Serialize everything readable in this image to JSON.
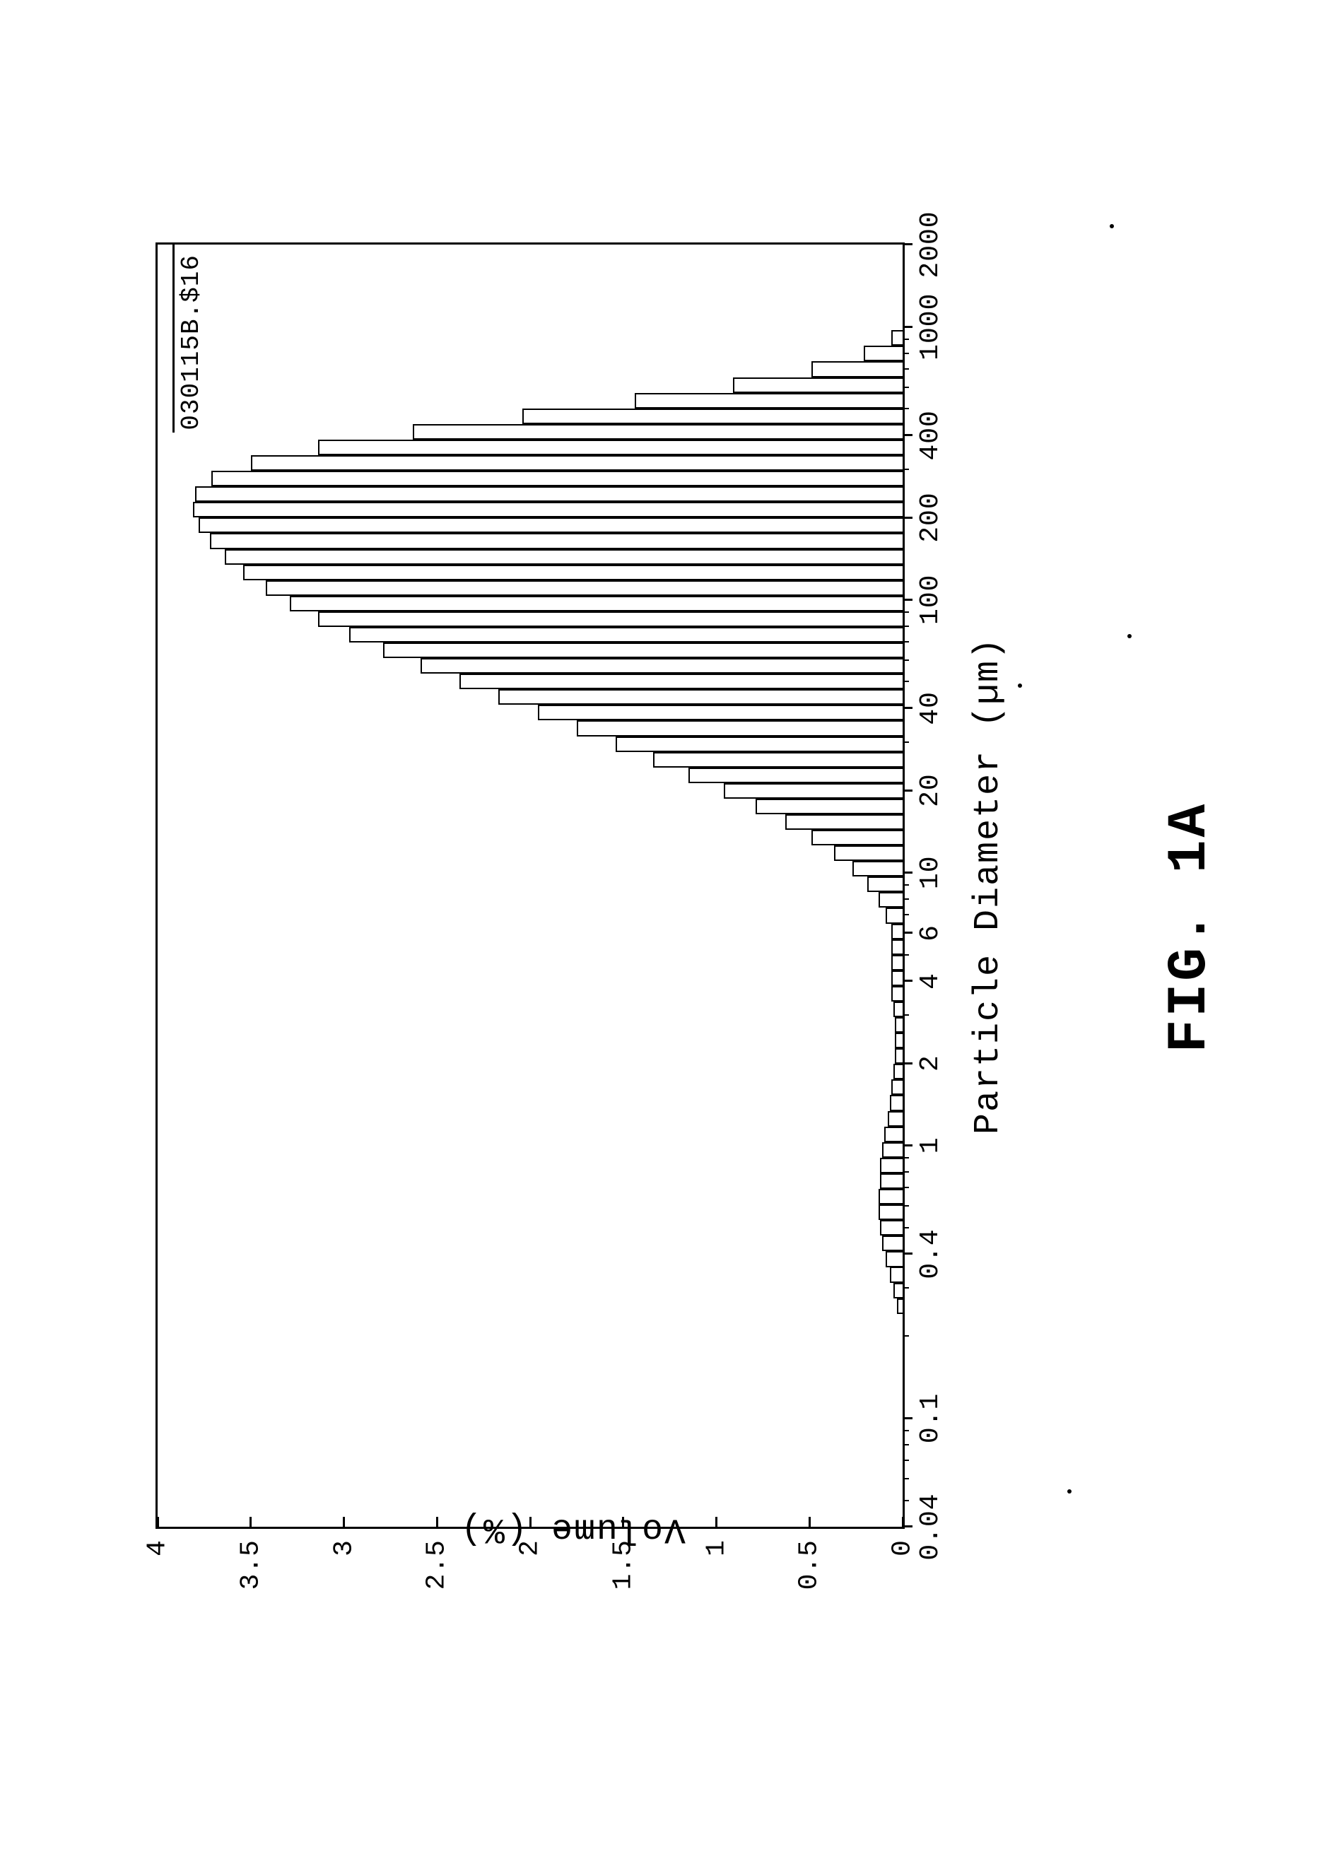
{
  "figure_label": "FIG. 1A",
  "chart": {
    "type": "histogram",
    "x_label": "Particle Diameter (µm)",
    "y_label": "Volume (%)",
    "legend_label": "030115B.$16",
    "background_color": "#ffffff",
    "border_color": "#000000",
    "bar_fill": "#ffffff",
    "bar_stroke": "#000000",
    "axis_font_family": "Courier New",
    "tick_fontsize_pt": 28,
    "label_fontsize_pt": 38,
    "figlabel_fontsize_pt": 58,
    "x_scale": "log",
    "y_scale": "linear",
    "xlim": [
      0.04,
      2000
    ],
    "ylim": [
      0,
      4
    ],
    "y_ticks": [
      0,
      0.5,
      1,
      1.5,
      2,
      2.5,
      3,
      3.5,
      4
    ],
    "y_tick_labels": [
      "0",
      "0.5",
      "1",
      "1.5",
      "2",
      "2.5",
      "3",
      "3.5",
      "4"
    ],
    "x_ticks": [
      0.04,
      0.1,
      0.4,
      1,
      2,
      4,
      6,
      10,
      20,
      40,
      100,
      200,
      400,
      1000,
      2000
    ],
    "x_tick_labels": [
      "0.04",
      "0.1",
      "0.4",
      "1",
      "2",
      "4",
      "6",
      "10",
      "20",
      "40",
      "100",
      "200",
      "400",
      "1000",
      "2000"
    ],
    "bins": [
      {
        "x": 0.241,
        "h": 0.03
      },
      {
        "x": 0.275,
        "h": 0.05
      },
      {
        "x": 0.314,
        "h": 0.07
      },
      {
        "x": 0.358,
        "h": 0.09
      },
      {
        "x": 0.409,
        "h": 0.11
      },
      {
        "x": 0.466,
        "h": 0.12
      },
      {
        "x": 0.532,
        "h": 0.13
      },
      {
        "x": 0.607,
        "h": 0.13
      },
      {
        "x": 0.692,
        "h": 0.12
      },
      {
        "x": 0.79,
        "h": 0.12
      },
      {
        "x": 0.901,
        "h": 0.11
      },
      {
        "x": 1.028,
        "h": 0.1
      },
      {
        "x": 1.172,
        "h": 0.08
      },
      {
        "x": 1.338,
        "h": 0.07
      },
      {
        "x": 1.526,
        "h": 0.06
      },
      {
        "x": 1.741,
        "h": 0.05
      },
      {
        "x": 1.986,
        "h": 0.04
      },
      {
        "x": 2.265,
        "h": 0.04
      },
      {
        "x": 2.584,
        "h": 0.04
      },
      {
        "x": 2.948,
        "h": 0.05
      },
      {
        "x": 3.363,
        "h": 0.06
      },
      {
        "x": 3.837,
        "h": 0.06
      },
      {
        "x": 4.377,
        "h": 0.06
      },
      {
        "x": 4.993,
        "h": 0.06
      },
      {
        "x": 5.696,
        "h": 0.06
      },
      {
        "x": 6.498,
        "h": 0.09
      },
      {
        "x": 7.413,
        "h": 0.13
      },
      {
        "x": 8.457,
        "h": 0.19
      },
      {
        "x": 9.647,
        "h": 0.27
      },
      {
        "x": 11.006,
        "h": 0.37
      },
      {
        "x": 12.555,
        "h": 0.49
      },
      {
        "x": 14.323,
        "h": 0.63
      },
      {
        "x": 16.34,
        "h": 0.79
      },
      {
        "x": 18.64,
        "h": 0.96
      },
      {
        "x": 21.265,
        "h": 1.15
      },
      {
        "x": 24.259,
        "h": 1.34
      },
      {
        "x": 27.675,
        "h": 1.54
      },
      {
        "x": 31.571,
        "h": 1.75
      },
      {
        "x": 36.017,
        "h": 1.96
      },
      {
        "x": 41.088,
        "h": 2.17
      },
      {
        "x": 46.873,
        "h": 2.38
      },
      {
        "x": 53.473,
        "h": 2.59
      },
      {
        "x": 61.003,
        "h": 2.79
      },
      {
        "x": 69.592,
        "h": 2.97
      },
      {
        "x": 79.391,
        "h": 3.14
      },
      {
        "x": 90.569,
        "h": 3.29
      },
      {
        "x": 103.322,
        "h": 3.42
      },
      {
        "x": 117.87,
        "h": 3.54
      },
      {
        "x": 134.467,
        "h": 3.64
      },
      {
        "x": 153.401,
        "h": 3.72
      },
      {
        "x": 175.002,
        "h": 3.78
      },
      {
        "x": 199.644,
        "h": 3.81
      },
      {
        "x": 227.756,
        "h": 3.8
      },
      {
        "x": 259.826,
        "h": 3.71
      },
      {
        "x": 296.411,
        "h": 3.5
      },
      {
        "x": 338.147,
        "h": 3.14
      },
      {
        "x": 385.759,
        "h": 2.63
      },
      {
        "x": 440.076,
        "h": 2.04
      },
      {
        "x": 502.041,
        "h": 1.44
      },
      {
        "x": 572.731,
        "h": 0.91
      },
      {
        "x": 653.375,
        "h": 0.49
      },
      {
        "x": 745.374,
        "h": 0.21
      },
      {
        "x": 850.326,
        "h": 0.06
      }
    ],
    "bin_ratio": 1.1408,
    "legend": {
      "line_from_x": 410,
      "line_to_plot_right": true,
      "y": 3.92
    }
  }
}
